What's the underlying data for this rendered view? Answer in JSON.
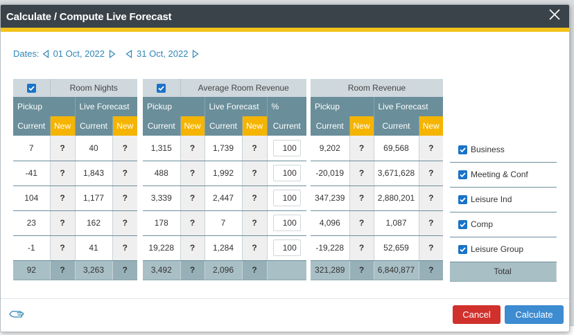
{
  "dialog": {
    "title": "Calculate / Compute Live Forecast"
  },
  "dates": {
    "label": "Dates:",
    "start": "01 Oct, 2022",
    "end": "31 Oct, 2022"
  },
  "room_nights": {
    "title": "Room Nights",
    "pickup": "Pickup",
    "live_forecast": "Live Forecast",
    "current": "Current",
    "new": "New",
    "rows": [
      {
        "pickup": "7",
        "lf": "40"
      },
      {
        "pickup": "-41",
        "lf": "1,843"
      },
      {
        "pickup": "104",
        "lf": "1,177"
      },
      {
        "pickup": "23",
        "lf": "162"
      },
      {
        "pickup": "-1",
        "lf": "41"
      }
    ],
    "total": {
      "pickup": "92",
      "lf": "3,263"
    }
  },
  "avg_room_revenue": {
    "title": "Average Room Revenue",
    "pickup": "Pickup",
    "live_forecast": "Live Forecast",
    "pct": "%",
    "current": "Current",
    "new": "New",
    "rows": [
      {
        "pickup": "1,315",
        "lf": "1,739",
        "pct": "100"
      },
      {
        "pickup": "488",
        "lf": "1,992",
        "pct": "100"
      },
      {
        "pickup": "3,339",
        "lf": "2,447",
        "pct": "100"
      },
      {
        "pickup": "178",
        "lf": "7",
        "pct": "100"
      },
      {
        "pickup": "19,228",
        "lf": "1,284",
        "pct": "100"
      }
    ],
    "total": {
      "pickup": "3,492",
      "lf": "2,096"
    }
  },
  "room_revenue": {
    "title": "Room Revenue",
    "pickup": "Pickup",
    "live_forecast": "Live Forecast",
    "current": "Current",
    "new": "New",
    "rows": [
      {
        "pickup": "9,202",
        "lf": "69,568"
      },
      {
        "pickup": "-20,019",
        "lf": "3,671,628"
      },
      {
        "pickup": "347,239",
        "lf": "2,880,201"
      },
      {
        "pickup": "4,096",
        "lf": "1,087"
      },
      {
        "pickup": "-19,228",
        "lf": "52,659"
      }
    ],
    "total": {
      "pickup": "321,289",
      "lf": "6,840,877"
    }
  },
  "unknown": "?",
  "segments": [
    "Business",
    "Meeting & Conf",
    "Leisure Ind",
    "Comp",
    "Leisure Group"
  ],
  "total_label": "Total",
  "buttons": {
    "cancel": "Cancel",
    "calculate": "Calculate"
  },
  "colors": {
    "header": "#3a434a",
    "accent_yellow": "#f2c31c",
    "column_header": "#6a8e9a",
    "new_highlight": "#f5b400",
    "checkbox": "#1a73c8",
    "cancel": "#d0312d",
    "calculate": "#3d8bd0"
  },
  "icons": {
    "close": "close-icon",
    "prev": "triangle-left-icon",
    "next": "triangle-right-icon",
    "footer": "hand-icon"
  }
}
